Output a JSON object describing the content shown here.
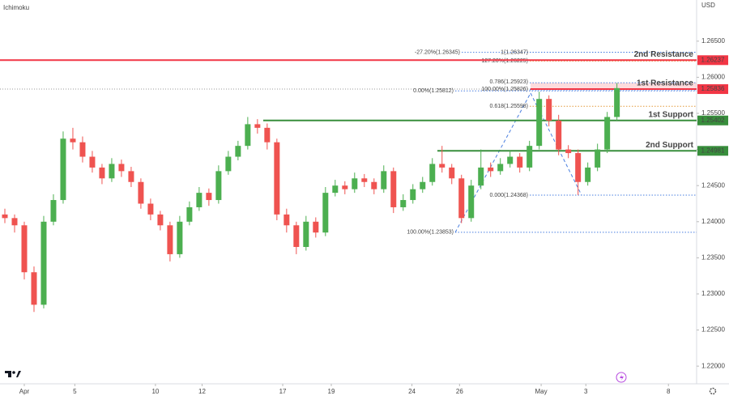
{
  "chart_data": {
    "type": "candlestick",
    "title": "Ichimoku",
    "currency": "USD",
    "up_color": "#4caf50",
    "down_color": "#ef5350",
    "ylim": [
      1.218,
      1.2707
    ],
    "xlim": [
      -0.5,
      71.2
    ],
    "yticks": [
      {
        "value": 1.22,
        "label": "1.22000"
      },
      {
        "value": 1.225,
        "label": "1.22500"
      },
      {
        "value": 1.23,
        "label": "1.23000"
      },
      {
        "value": 1.235,
        "label": "1.23500"
      },
      {
        "value": 1.24,
        "label": "1.24000"
      },
      {
        "value": 1.245,
        "label": "1.24500"
      },
      {
        "value": 1.25,
        "label": "1.25000"
      },
      {
        "value": 1.255,
        "label": "1.25500"
      },
      {
        "value": 1.26,
        "label": "1.26000"
      },
      {
        "value": 1.265,
        "label": "1.26500"
      }
    ],
    "xticks": [
      {
        "value": 2,
        "label": "Apr"
      },
      {
        "value": 7.2,
        "label": "5"
      },
      {
        "value": 15.5,
        "label": "10"
      },
      {
        "value": 20.3,
        "label": "12"
      },
      {
        "value": 28.6,
        "label": "17"
      },
      {
        "value": 33.6,
        "label": "19"
      },
      {
        "value": 41.9,
        "label": "24"
      },
      {
        "value": 46.8,
        "label": "26"
      },
      {
        "value": 55.2,
        "label": "May"
      },
      {
        "value": 59.8,
        "label": "3"
      },
      {
        "value": 68.3,
        "label": "8"
      }
    ],
    "candles": [
      [
        1.241,
        1.2418,
        1.2398,
        1.2405
      ],
      [
        1.2405,
        1.241,
        1.2385,
        1.2395
      ],
      [
        1.2395,
        1.24,
        1.232,
        1.233
      ],
      [
        1.233,
        1.2338,
        1.2275,
        1.2285
      ],
      [
        1.2285,
        1.2408,
        1.228,
        1.24
      ],
      [
        1.24,
        1.2438,
        1.2395,
        1.243
      ],
      [
        1.243,
        1.2525,
        1.2425,
        1.2515
      ],
      [
        1.2515,
        1.253,
        1.25,
        1.251
      ],
      [
        1.251,
        1.2518,
        1.2482,
        1.249
      ],
      [
        1.249,
        1.2498,
        1.2468,
        1.2475
      ],
      [
        1.2475,
        1.248,
        1.2452,
        1.246
      ],
      [
        1.246,
        1.2488,
        1.2455,
        1.248
      ],
      [
        1.248,
        1.2486,
        1.2462,
        1.247
      ],
      [
        1.247,
        1.2476,
        1.2448,
        1.2455
      ],
      [
        1.2455,
        1.246,
        1.2418,
        1.2425
      ],
      [
        1.2425,
        1.2432,
        1.2402,
        1.241
      ],
      [
        1.241,
        1.2415,
        1.2388,
        1.2395
      ],
      [
        1.2395,
        1.24,
        1.2345,
        1.2355
      ],
      [
        1.2355,
        1.2408,
        1.235,
        1.24
      ],
      [
        1.24,
        1.2428,
        1.2395,
        1.242
      ],
      [
        1.242,
        1.2448,
        1.2415,
        1.244
      ],
      [
        1.244,
        1.2446,
        1.2422,
        1.243
      ],
      [
        1.243,
        1.2478,
        1.2425,
        1.247
      ],
      [
        1.247,
        1.2498,
        1.2465,
        1.249
      ],
      [
        1.249,
        1.2512,
        1.2485,
        1.2505
      ],
      [
        1.2505,
        1.2545,
        1.25,
        1.2535
      ],
      [
        1.2535,
        1.2542,
        1.2522,
        1.253
      ],
      [
        1.253,
        1.2536,
        1.25,
        1.251
      ],
      [
        1.251,
        1.2515,
        1.2402,
        1.241
      ],
      [
        1.241,
        1.2418,
        1.2385,
        1.2395
      ],
      [
        1.2395,
        1.24,
        1.2355,
        1.2365
      ],
      [
        1.2365,
        1.2408,
        1.236,
        1.24
      ],
      [
        1.24,
        1.2406,
        1.2378,
        1.2385
      ],
      [
        1.2385,
        1.2448,
        1.238,
        1.244
      ],
      [
        1.244,
        1.2458,
        1.2435,
        1.245
      ],
      [
        1.245,
        1.2456,
        1.2438,
        1.2445
      ],
      [
        1.2445,
        1.2468,
        1.244,
        1.246
      ],
      [
        1.246,
        1.2466,
        1.2448,
        1.2455
      ],
      [
        1.2455,
        1.246,
        1.2438,
        1.2445
      ],
      [
        1.2445,
        1.2478,
        1.244,
        1.247
      ],
      [
        1.247,
        1.2475,
        1.2412,
        1.242
      ],
      [
        1.242,
        1.2438,
        1.2415,
        1.243
      ],
      [
        1.243,
        1.2452,
        1.2425,
        1.2445
      ],
      [
        1.2445,
        1.2462,
        1.244,
        1.2455
      ],
      [
        1.2455,
        1.2488,
        1.245,
        1.248
      ],
      [
        1.248,
        1.2505,
        1.2468,
        1.2475
      ],
      [
        1.2475,
        1.248,
        1.2452,
        1.246
      ],
      [
        1.246,
        1.2465,
        1.2398,
        1.2405
      ],
      [
        1.2405,
        1.2458,
        1.24,
        1.245
      ],
      [
        1.245,
        1.25,
        1.2445,
        1.2475
      ],
      [
        1.2475,
        1.2482,
        1.2462,
        1.247
      ],
      [
        1.247,
        1.2488,
        1.2465,
        1.248
      ],
      [
        1.248,
        1.2498,
        1.2475,
        1.249
      ],
      [
        1.249,
        1.2495,
        1.2468,
        1.2475
      ],
      [
        1.2475,
        1.2512,
        1.247,
        1.2505
      ],
      [
        1.2505,
        1.258,
        1.25,
        1.257
      ],
      [
        1.257,
        1.2575,
        1.2532,
        1.254
      ],
      [
        1.254,
        1.2548,
        1.2492,
        1.25
      ],
      [
        1.25,
        1.2506,
        1.2488,
        1.2495
      ],
      [
        1.2495,
        1.25,
        1.2437,
        1.2455
      ],
      [
        1.2455,
        1.2482,
        1.245,
        1.2475
      ],
      [
        1.2475,
        1.2508,
        1.247,
        1.25
      ],
      [
        1.25,
        1.2552,
        1.2495,
        1.2545
      ],
      [
        1.2545,
        1.2592,
        1.254,
        1.2585
      ]
    ],
    "levels": [
      {
        "name": "2nd Resistance",
        "value": 1.26237,
        "color": "#f23645"
      },
      {
        "name": "1st Resistance",
        "value": 1.25836,
        "color": "#f23645"
      },
      {
        "name": "1st Support",
        "value": 1.25402,
        "color": "#388e3c"
      },
      {
        "name": "2nd Support",
        "value": 1.24981,
        "color": "#388e3c"
      }
    ],
    "fib_levels": [
      {
        "value": 1.26345,
        "label": "-27.20%(1.26345)",
        "color": "#4a7fe0"
      },
      {
        "value": 1.26347,
        "label": "1(1.26347)",
        "color": "#4a7fe0"
      },
      {
        "value": 1.26225,
        "label": "127.20%(1.26225)",
        "color": "#e39a3b"
      },
      {
        "value": 1.25923,
        "label": "0.786(1.25923)",
        "color": "#4a7fe0"
      },
      {
        "value": 1.25826,
        "label": "100.00%(1.25826)",
        "color": "#4a7fe0"
      },
      {
        "value": 1.25812,
        "label": "0.00%(1.25812)",
        "color": "#4a7fe0"
      },
      {
        "value": 1.25598,
        "label": "0.618(1.25598)",
        "color": "#e39a3b"
      },
      {
        "value": 1.24368,
        "label": "0.000(1.24368)",
        "color": "#4a7fe0"
      },
      {
        "value": 1.23853,
        "label": "100.00%(1.23853)",
        "color": "#4a7fe0"
      }
    ]
  }
}
